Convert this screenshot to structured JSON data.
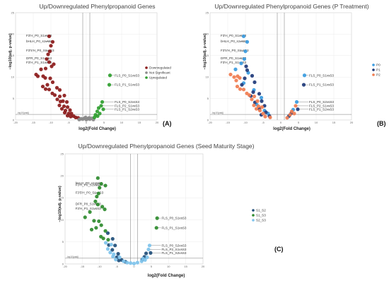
{
  "figure": {
    "panel_labels": [
      "(A)",
      "(B)",
      "(C)"
    ],
    "threshold_label": "-log10(padj)"
  },
  "chart_data": [
    {
      "type": "scatter",
      "title": "Up/Downregulated Phenylpropanoid Genes",
      "xlabel": "log2(Fold Change)",
      "ylabel": "−log10(adj. p-value)",
      "xlim": [
        -20,
        20
      ],
      "ylim": [
        0,
        25
      ],
      "x_ticks": [
        -20,
        -15,
        -10,
        -5,
        0,
        5,
        10,
        15,
        20
      ],
      "y_ticks": [
        0,
        5,
        10,
        15,
        20,
        25
      ],
      "grid": true,
      "legend_position": "right",
      "colors": {
        "Downregulated": "#8b1a1a",
        "Not Significant": "#8a8a8a",
        "Upregulated": "#2e9e2e"
      },
      "series": [
        {
          "name": "Downregulated",
          "points": [
            [
              -10.5,
              19.5
            ],
            [
              -9.5,
              18.2
            ],
            [
              -10,
              17.3
            ],
            [
              -10.3,
              16
            ],
            [
              -10.8,
              15.3
            ],
            [
              -11.2,
              14.2
            ],
            [
              -10.5,
              13.5
            ],
            [
              -9.2,
              13
            ],
            [
              -9.8,
              12.5
            ],
            [
              -11.5,
              12
            ],
            [
              -12.8,
              11.8
            ],
            [
              -14.2,
              10.6
            ],
            [
              -13.7,
              10.2
            ],
            [
              -12.2,
              10.2
            ],
            [
              -11.6,
              9.8
            ],
            [
              -10.2,
              9.7
            ],
            [
              -9.5,
              8.8
            ],
            [
              -11,
              8.2
            ],
            [
              -12.3,
              7.8
            ],
            [
              -11.5,
              7.2
            ],
            [
              -10.5,
              7.1
            ],
            [
              -8.3,
              7.5
            ],
            [
              -7.5,
              7
            ],
            [
              -9.6,
              6.2
            ],
            [
              -8.9,
              5.8
            ],
            [
              -7.5,
              5.5
            ],
            [
              -6.2,
              5.7
            ],
            [
              -8.2,
              4.8
            ],
            [
              -7.3,
              4.3
            ],
            [
              -6.6,
              4.4
            ],
            [
              -5.5,
              4.2
            ],
            [
              -7.6,
              3.4
            ],
            [
              -6.3,
              3.2
            ],
            [
              -5.3,
              3
            ],
            [
              -6.9,
              2.6
            ],
            [
              -5.9,
              2.2
            ],
            [
              -4.6,
              2.3
            ],
            [
              -6.1,
              1.7
            ],
            [
              -5,
              1.5
            ],
            [
              -4.2,
              1.5
            ],
            [
              -5.3,
              1.0
            ],
            [
              -4.4,
              0.8
            ],
            [
              -3.6,
              0.9
            ],
            [
              -3,
              0.6
            ],
            [
              -2.3,
              0.5
            ]
          ]
        },
        {
          "name": "Not Significant",
          "points": [
            [
              -1.5,
              0.3
            ],
            [
              -1,
              0.2
            ],
            [
              -0.5,
              0.4
            ],
            [
              0,
              0.1
            ],
            [
              0.5,
              0.3
            ],
            [
              1,
              0.2
            ],
            [
              1.5,
              0.4
            ],
            [
              -2,
              0.1
            ],
            [
              2,
              0.1
            ],
            [
              -0.2,
              0.6
            ],
            [
              0.8,
              0.5
            ]
          ]
        },
        {
          "name": "Upregulated",
          "points": [
            [
              6.7,
              10.4
            ],
            [
              6.5,
              8.2
            ],
            [
              4.5,
              4.2
            ],
            [
              4.2,
              3.3
            ],
            [
              3.5,
              2.8
            ],
            [
              4.8,
              2.5
            ],
            [
              3.1,
              2
            ],
            [
              3.8,
              1.5
            ],
            [
              2.6,
              1.2
            ],
            [
              3.2,
              0.9
            ],
            [
              2.3,
              0.6
            ]
          ]
        }
      ],
      "annotations": [
        {
          "text": "F3'H_P0_S1vsS3",
          "x": -10.5,
          "y": 19.5
        },
        {
          "text": "bHLH_P0_s1vsS3",
          "x": -9.5,
          "y": 18.2
        },
        {
          "text": "F3'5'H_P0_S1vsS3",
          "x": -10,
          "y": 16
        },
        {
          "text": "DFR_P0_S1vsS3",
          "x": -10.3,
          "y": 14.2
        },
        {
          "text": "F3'H_P1_S1vsS3",
          "x": -11.2,
          "y": 13.2
        },
        {
          "text": "FLS_P0_S1vsS3",
          "x": 6.7,
          "y": 10.4
        },
        {
          "text": "FLS_P1_S1vsS3",
          "x": 6.5,
          "y": 8.2
        },
        {
          "text": "FLS_P0_S2vsS3",
          "x": 4.5,
          "y": 4.2
        },
        {
          "text": "FLS_P2_S1vsS3",
          "x": 4.2,
          "y": 3.3
        },
        {
          "text": "FLS_P1_S2vsS3",
          "x": 4.8,
          "y": 2.5
        }
      ]
    },
    {
      "type": "scatter",
      "title": "Up/Downregulated Phenylpropanoid Genes (P Treatment)",
      "xlabel": "log2(Fold Change)",
      "ylabel": "−log10(adj. p-value)",
      "xlim": [
        -20,
        20
      ],
      "ylim": [
        0,
        25
      ],
      "x_ticks": [
        -20,
        -15,
        -10,
        -5,
        0,
        5,
        10,
        15,
        20
      ],
      "y_ticks": [
        0,
        5,
        10,
        15,
        20,
        25
      ],
      "grid": true,
      "legend_position": "right",
      "colors": {
        "P0": "#3a9be0",
        "P1": "#1f3a7a",
        "P2": "#f07c50"
      },
      "series": [
        {
          "name": "P0",
          "points": [
            [
              -10.5,
              19.5
            ],
            [
              -9.5,
              18.2
            ],
            [
              -10,
              16
            ],
            [
              -10.3,
              14.2
            ],
            [
              -11.2,
              13.2
            ],
            [
              -12.8,
              11.8
            ],
            [
              -9.2,
              11
            ],
            [
              -10.5,
              8.6
            ],
            [
              -7.6,
              7
            ],
            [
              -5.5,
              5.2
            ],
            [
              -6.8,
              3.6
            ],
            [
              -4.6,
              2.2
            ],
            [
              -3.6,
              1.5
            ],
            [
              6.7,
              10.4
            ],
            [
              4.5,
              4.2
            ],
            [
              3.5,
              2.4
            ],
            [
              2.2,
              0.8
            ]
          ]
        },
        {
          "name": "P1",
          "points": [
            [
              -9.8,
              12.5
            ],
            [
              -9.5,
              11.6
            ],
            [
              -8.1,
              10.3
            ],
            [
              -10.2,
              9.7
            ],
            [
              -7.4,
              8.8
            ],
            [
              -11,
              8.2
            ],
            [
              -7.8,
              6.5
            ],
            [
              -6.1,
              6.1
            ],
            [
              -8.5,
              5.6
            ],
            [
              -5.4,
              4.4
            ],
            [
              -7.3,
              4.1
            ],
            [
              -4.6,
              3.3
            ],
            [
              -6.1,
              2.6
            ],
            [
              -4.2,
              1.8
            ],
            [
              -5.5,
              1.2
            ],
            [
              -3.2,
              0.9
            ],
            [
              6.5,
              8.2
            ],
            [
              4.8,
              2.5
            ],
            [
              3,
              1.6
            ],
            [
              2.4,
              1.0
            ]
          ]
        },
        {
          "name": "P2",
          "points": [
            [
              -14.2,
              10.6
            ],
            [
              -13.2,
              10.0
            ],
            [
              -12.2,
              10.2
            ],
            [
              -11.6,
              9.8
            ],
            [
              -12.6,
              9.2
            ],
            [
              -12.3,
              7.8
            ],
            [
              -11.5,
              7.2
            ],
            [
              -10.5,
              7.1
            ],
            [
              -9.6,
              6.2
            ],
            [
              -8.9,
              5.8
            ],
            [
              -7.5,
              5.5
            ],
            [
              -8.2,
              4.8
            ],
            [
              -6.6,
              4.4
            ],
            [
              -7.6,
              3.4
            ],
            [
              -6.3,
              3.2
            ],
            [
              -5.3,
              3
            ],
            [
              -6.9,
              2.6
            ],
            [
              -5.9,
              2.2
            ],
            [
              -5,
              1.5
            ],
            [
              -4.4,
              0.8
            ],
            [
              -3,
              0.6
            ],
            [
              4.2,
              3.3
            ],
            [
              3.1,
              2
            ],
            [
              3.8,
              1.5
            ],
            [
              2.6,
              1.2
            ],
            [
              1.8,
              0.5
            ]
          ]
        }
      ],
      "annotations": [
        {
          "text": "F3'H_P0_S1vsS3",
          "x": -10.5,
          "y": 19.5
        },
        {
          "text": "bHLH_P0_s1vsS3",
          "x": -9.5,
          "y": 18.2
        },
        {
          "text": "F3'5'H_P0_S1vsS3",
          "x": -10,
          "y": 16
        },
        {
          "text": "DFR_P0_S1vsS3",
          "x": -10.3,
          "y": 14.2
        },
        {
          "text": "F3'H_P1_S1vsS3",
          "x": -11.2,
          "y": 13.2
        },
        {
          "text": "FLS_P0_S1vsS3",
          "x": 6.7,
          "y": 10.4
        },
        {
          "text": "FLS_P1_S1vsS3",
          "x": 6.5,
          "y": 8.2
        },
        {
          "text": "FLS_P0_S2vsS3",
          "x": 4.5,
          "y": 4.2
        },
        {
          "text": "FLS_P2_S1vsS3",
          "x": 4.2,
          "y": 3.3
        },
        {
          "text": "FLS_P1_S2vsS3",
          "x": 4.8,
          "y": 2.5
        }
      ]
    },
    {
      "type": "scatter",
      "title": "Up/Downregulated Phenylpropanoid Genes (Seed Maturity Stage)",
      "xlabel": "log2(Fold Change)",
      "ylabel": "−log10(adj. p-value)",
      "xlim": [
        -20,
        20
      ],
      "ylim": [
        0,
        25
      ],
      "x_ticks": [
        -20,
        -15,
        -10,
        -5,
        0,
        5,
        10,
        15,
        20
      ],
      "y_ticks": [
        0,
        5,
        10,
        15,
        20,
        25
      ],
      "grid": true,
      "legend_position": "right",
      "colors": {
        "S1_S2": "#1f4e79",
        "S1_S3": "#2e8b2e",
        "S2_S3": "#7ec3ec"
      },
      "series": [
        {
          "name": "S1_S2",
          "points": [
            [
              -7.6,
              7
            ],
            [
              -6.2,
              5.7
            ],
            [
              -7.3,
              4.3
            ],
            [
              -5.5,
              4.2
            ],
            [
              -6.3,
              3.2
            ],
            [
              -4.6,
              2.3
            ],
            [
              -5,
              1.5
            ],
            [
              -3.6,
              0.9
            ],
            [
              -4.4,
              0.8
            ],
            [
              -2.5,
              0.5
            ],
            [
              3.5,
              2.4
            ],
            [
              3,
              1.6
            ],
            [
              2.4,
              1.0
            ],
            [
              4.8,
              2.5
            ]
          ]
        },
        {
          "name": "S1_S3",
          "points": [
            [
              -10.5,
              19.5
            ],
            [
              -9.5,
              18.2
            ],
            [
              -10,
              17.3
            ],
            [
              -8.3,
              17.8
            ],
            [
              -10.3,
              16
            ],
            [
              -10.8,
              15.3
            ],
            [
              -10.5,
              13.5
            ],
            [
              -11.2,
              14.2
            ],
            [
              -9.2,
              13
            ],
            [
              -8.5,
              12.4
            ],
            [
              -14.2,
              10.6
            ],
            [
              -12.8,
              11.8
            ],
            [
              -11.6,
              9.8
            ],
            [
              -10.2,
              9.7
            ],
            [
              -9.5,
              8.8
            ],
            [
              -11,
              8.2
            ],
            [
              -12.3,
              7.8
            ],
            [
              -8.3,
              7.5
            ],
            [
              -9.6,
              6.2
            ],
            [
              -8.9,
              5.8
            ],
            [
              -7.5,
              5.5
            ],
            [
              6.7,
              10.4
            ],
            [
              6.5,
              8.2
            ]
          ]
        },
        {
          "name": "S2_S3",
          "points": [
            [
              -8.2,
              4.8
            ],
            [
              -6.6,
              4.4
            ],
            [
              -7.6,
              3.4
            ],
            [
              -6.9,
              2.6
            ],
            [
              -5.9,
              2.2
            ],
            [
              -6.1,
              1.7
            ],
            [
              -4.2,
              1.5
            ],
            [
              -5.3,
              1.0
            ],
            [
              -3,
              0.6
            ],
            [
              -2,
              0.3
            ],
            [
              -1,
              0.2
            ],
            [
              0,
              0.1
            ],
            [
              1,
              0.3
            ],
            [
              4.5,
              4.2
            ],
            [
              4.2,
              3.3
            ],
            [
              3.8,
              1.5
            ],
            [
              2.6,
              1.2
            ],
            [
              3.2,
              0.9
            ],
            [
              2.2,
              0.6
            ]
          ]
        }
      ],
      "annotations": [
        {
          "text": "F3'H_P0_S1vsS3",
          "x": -8.3,
          "y": 17.8
        },
        {
          "text": "bHLH_P0_s1vsS3",
          "x": -9.5,
          "y": 18.2
        },
        {
          "text": "F3'5'H_P0_S1vsS3",
          "x": -10,
          "y": 16
        },
        {
          "text": "DFR_P0_S1vsS3",
          "x": -10.3,
          "y": 13.5
        },
        {
          "text": "F3'H_P1_S1vsS3",
          "x": -11.2,
          "y": 12.4
        },
        {
          "text": "FLS_P0_S1vsS3",
          "x": 6.7,
          "y": 10.4
        },
        {
          "text": "FLS_P1_S1vsS3",
          "x": 6.5,
          "y": 8.2
        },
        {
          "text": "FLS_P0_S2vsS3",
          "x": 4.5,
          "y": 4.2
        },
        {
          "text": "FLS_P2_S1vsS3",
          "x": 4.2,
          "y": 3.3
        },
        {
          "text": "FLS_P1_S2vsS3",
          "x": 4.8,
          "y": 2.5
        }
      ]
    }
  ]
}
